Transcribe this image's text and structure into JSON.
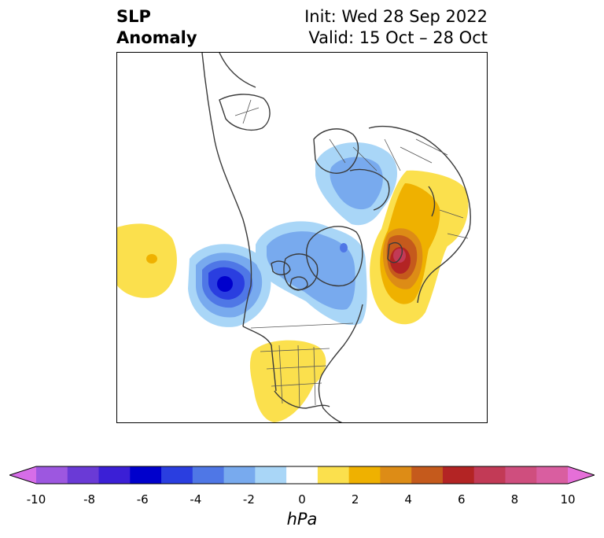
{
  "title": {
    "left_line1": "SLP",
    "left_line2": "Anomaly",
    "right_line1": "Init: Wed 28 Sep 2022",
    "right_line2": "Valid: 15 Oct – 28 Oct"
  },
  "colorbar": {
    "unit": "hPa",
    "ticks": [
      "-10",
      "-8",
      "-6",
      "-4",
      "-2",
      "0",
      "2",
      "4",
      "6",
      "8",
      "10"
    ],
    "colors": [
      "#d66de8",
      "#9d57e0",
      "#6a3ad6",
      "#3b1fd6",
      "#0000cc",
      "#2a3ee0",
      "#4f77e6",
      "#78aaee",
      "#a9d6f7",
      "#ffffff",
      "#fbe04d",
      "#efb100",
      "#dd8c16",
      "#c55a1c",
      "#b32424",
      "#c23a56",
      "#cf4e7e",
      "#d95ea0",
      "#e56fd8"
    ],
    "extend": "both"
  },
  "map": {
    "projection": "north-polar-stereographic",
    "features": [
      "coastlines",
      "country borders",
      "US state borders"
    ],
    "anomaly_centers": [
      {
        "region": "Gulf of Alaska",
        "sign": "negative",
        "peak_hPa": -6
      },
      {
        "region": "Northwest Pacific / Japan",
        "sign": "positive",
        "peak_hPa": 8
      },
      {
        "region": "Central United States",
        "sign": "positive",
        "peak_hPa": 2
      },
      {
        "region": "Subtropical North Atlantic",
        "sign": "positive",
        "peak_hPa": 2
      },
      {
        "region": "Arctic / Canadian Archipelago",
        "sign": "negative",
        "peak_hPa": -4
      },
      {
        "region": "Northern Europe / Scandinavia",
        "sign": "negative",
        "peak_hPa": -2
      }
    ]
  }
}
